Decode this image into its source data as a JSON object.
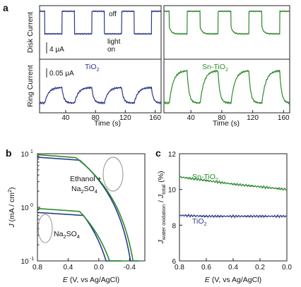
{
  "colors": {
    "tio2": "#2e3a8c",
    "sn_tio2": "#2b8a2b",
    "axis": "#222222",
    "annotation": "#888888"
  },
  "chart_data": [
    {
      "panel": "a",
      "type": "line",
      "title": "",
      "xlabel": "Time (s)",
      "ylabel_top": "Disk Current",
      "ylabel_bottom": "Ring Current",
      "xlim": [
        5,
        168
      ],
      "xticks": [
        40,
        80,
        120,
        160
      ],
      "scalebar_disk": "4 μA",
      "scalebar_ring": "0.05 μA",
      "annotations": {
        "off": "off",
        "light": "light",
        "on": "on"
      },
      "series": [
        {
          "name": "TiO",
          "sub": "2",
          "signal": "disk",
          "on_periods": [
            [
              12,
              35
            ],
            [
              52,
              75
            ],
            [
              92,
              115
            ],
            [
              132,
              155
            ]
          ],
          "dark_level": 1.0,
          "light_level": 0.0
        },
        {
          "name": "Sn-TiO",
          "sub": "2",
          "signal": "disk",
          "on_periods": [
            [
              12,
              35
            ],
            [
              52,
              75
            ],
            [
              92,
              115
            ],
            [
              132,
              155
            ]
          ],
          "dark_level": 1.0,
          "light_level": 0.0,
          "spike": true
        },
        {
          "name": "TiO",
          "sub": "2",
          "signal": "ring",
          "on_periods": [
            [
              12,
              35
            ],
            [
              52,
              75
            ],
            [
              92,
              115
            ],
            [
              132,
              155
            ]
          ],
          "dark_level": 0.0,
          "light_level": 0.45
        },
        {
          "name": "Sn-TiO",
          "sub": "2",
          "signal": "ring",
          "on_periods": [
            [
              12,
              35
            ],
            [
              52,
              75
            ],
            [
              92,
              115
            ],
            [
              132,
              155
            ]
          ],
          "dark_level": 0.0,
          "light_level": 0.95
        }
      ]
    },
    {
      "panel": "b",
      "type": "line",
      "xlabel": "E (V, vs Ag/AgCl)",
      "ylabel": "J (mA / cm²)",
      "yscale": "log",
      "xlim": [
        0.8,
        -0.6
      ],
      "ylim": [
        0.1,
        10
      ],
      "xticks": [
        "0.8",
        "0.4",
        "0.0",
        "-0.4"
      ],
      "yticks": [
        "10¹",
        "10⁰",
        "10⁻¹"
      ],
      "annotations": [
        "Ethanol +",
        "Na₂SO₄",
        "Na₂SO₄"
      ],
      "series": [
        {
          "electrolyte": "Ethanol + Na2SO4",
          "color": "tio2",
          "plateau": 8.6,
          "drop_start": 0.25,
          "cutoff": -0.52
        },
        {
          "electrolyte": "Ethanol + Na2SO4",
          "color": "sn_tio2",
          "plateau": 9.6,
          "drop_start": 0.3,
          "cutoff": -0.56
        },
        {
          "electrolyte": "Na2SO4",
          "color": "tio2",
          "plateau": 0.8,
          "drop_start": 0.2,
          "cutoff": -0.3
        },
        {
          "electrolyte": "Na2SO4",
          "color": "sn_tio2",
          "plateau": 0.95,
          "drop_start": 0.25,
          "cutoff": -0.38
        }
      ]
    },
    {
      "panel": "c",
      "type": "line",
      "xlabel": "E (V, vs Ag/AgCl)",
      "ylabel": "J water oxidation / J total (%)",
      "xlim": [
        0.8,
        0.0
      ],
      "ylim": [
        6,
        12
      ],
      "xticks": [
        "0.8",
        "0.6",
        "0.4",
        "0.2",
        "0.0"
      ],
      "yticks": [
        "6",
        "8",
        "10",
        "12"
      ],
      "series": [
        {
          "name": "Sn-TiO",
          "sub": "2",
          "x": [
            0.8,
            0.6,
            0.4,
            0.2,
            0.0
          ],
          "y": [
            10.7,
            10.5,
            10.3,
            10.15,
            10.0
          ]
        },
        {
          "name": "TiO",
          "sub": "2",
          "x": [
            0.8,
            0.6,
            0.4,
            0.2,
            0.0
          ],
          "y": [
            8.55,
            8.5,
            8.5,
            8.5,
            8.5
          ]
        }
      ]
    }
  ],
  "panel_labels": {
    "a": "a",
    "b": "b",
    "c": "c"
  }
}
